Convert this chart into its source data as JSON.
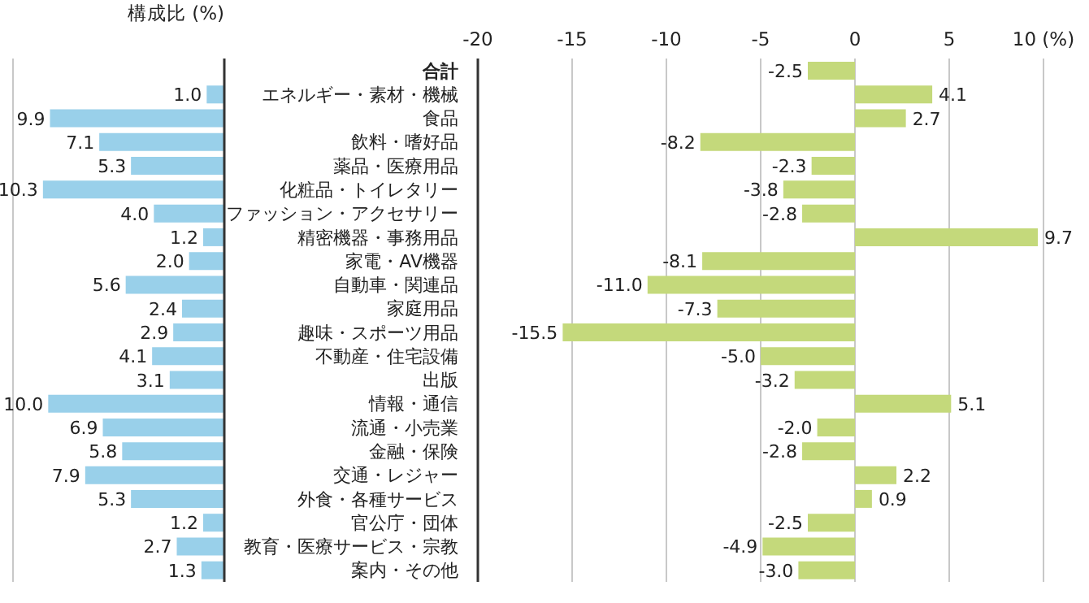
{
  "chart_data": [
    {
      "type": "bar",
      "orientation": "horizontal",
      "xlabel": "構成比 (%)",
      "categories": [
        "合計",
        "エネルギー・素材・機械",
        "食品",
        "飲料・嗜好品",
        "薬品・医療用品",
        "化粧品・トイレタリー",
        "ファッション・アクセサリー",
        "精密機器・事務用品",
        "家電・AV機器",
        "自動車・関連品",
        "家庭用品",
        "趣味・スポーツ用品",
        "不動産・住宅設備",
        "出版",
        "情報・通信",
        "流通・小売業",
        "金融・保険",
        "交通・レジャー",
        "外食・各種サービス",
        "官公庁・団体",
        "教育・医療サービス・宗教",
        "案内・その他"
      ],
      "values": [
        null,
        1.0,
        9.9,
        7.1,
        5.3,
        10.3,
        4.0,
        1.2,
        2.0,
        5.6,
        2.4,
        2.9,
        4.1,
        3.1,
        10.0,
        6.9,
        5.8,
        7.9,
        5.3,
        1.2,
        2.7,
        1.3
      ],
      "value_labels": [
        null,
        "1.0",
        "9.9",
        "7.1",
        "5.3",
        "10.3",
        "4.0",
        "1.2",
        "2.0",
        "5.6",
        "2.4",
        "2.9",
        "4.1",
        "3.1",
        "10.0",
        "6.9",
        "5.8",
        "7.9",
        "5.3",
        "1.2",
        "2.7",
        "1.3"
      ],
      "color": "#99d0ea",
      "xlim": [
        12,
        0
      ],
      "tick_labels": "y"
    },
    {
      "type": "bar",
      "orientation": "horizontal",
      "categories": [
        null,
        null,
        null,
        null,
        null,
        null,
        null,
        null,
        null,
        null,
        null,
        null,
        null,
        null,
        null,
        null,
        null,
        null,
        null,
        null,
        null,
        null
      ],
      "values": [
        -2.5,
        4.1,
        2.7,
        -8.2,
        -2.3,
        -3.8,
        -2.8,
        9.7,
        -8.1,
        -11.0,
        -7.3,
        -15.5,
        -5.0,
        -3.2,
        5.1,
        -2.0,
        -2.8,
        2.2,
        0.9,
        -2.5,
        -4.9,
        -3.0
      ],
      "value_labels": [
        "-2.5",
        "4.1",
        "2.7",
        "-8.2",
        "-2.3",
        "-3.8",
        "-2.8",
        "9.7",
        "-8.1",
        "-11.0",
        "-7.3",
        "-15.5",
        "-5.0",
        "-3.2",
        "5.1",
        "-2.0",
        "-2.8",
        "2.2",
        "0.9",
        "-2.5",
        "-4.9",
        "-3.0"
      ],
      "color": "#c4d97b",
      "xlim": [
        -20,
        10
      ],
      "xticks": [
        -20,
        -15,
        -10,
        -5,
        0,
        5,
        {
          "value": 10,
          "label": "10 (%)"
        }
      ],
      "grid": "x"
    }
  ]
}
